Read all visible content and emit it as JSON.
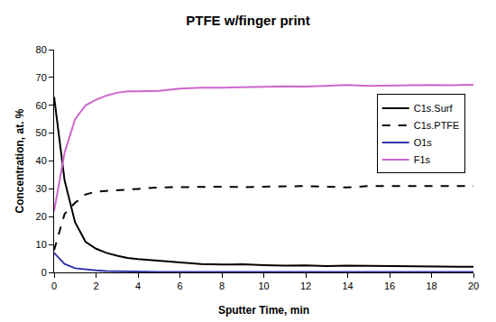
{
  "chart_data": {
    "type": "line",
    "title": "PTFE w/finger print",
    "x_label": "Sputter Time, min",
    "y_label": "Concentration, at. %",
    "x": [
      0,
      0.5,
      1,
      1.5,
      2,
      2.5,
      3,
      3.5,
      4,
      5,
      6,
      7,
      8,
      9,
      10,
      11,
      12,
      13,
      14,
      15,
      16,
      17,
      18,
      19,
      20
    ],
    "series": [
      {
        "name": "C1s.Surf",
        "color": "#000000",
        "line_style": "solid",
        "values": [
          63,
          33,
          18,
          11,
          8.5,
          7,
          6,
          5.2,
          4.8,
          4.2,
          3.5,
          3,
          2.8,
          2.9,
          2.6,
          2.4,
          2.5,
          2.3,
          2.4,
          2.3,
          2.2,
          2.1,
          2.1,
          2,
          2
        ]
      },
      {
        "name": "C1s.PTFE",
        "color": "#000000",
        "line_style": "dash",
        "values": [
          8,
          21,
          25,
          28,
          29,
          29.3,
          29.6,
          29.8,
          30,
          30.5,
          30.5,
          30.7,
          30.8,
          30.6,
          30.8,
          31,
          31,
          30.8,
          30.5,
          31,
          31,
          31,
          31,
          31,
          31
        ]
      },
      {
        "name": "O1s",
        "color": "#3333aa",
        "line_style": "solid",
        "values": [
          7,
          3,
          1.5,
          1,
          0.7,
          0.5,
          0.4,
          0.3,
          0.3,
          0.2,
          0.2,
          0.2,
          0.2,
          0.2,
          0.2,
          0.2,
          0.2,
          0.2,
          0.2,
          0.2,
          0.2,
          0.2,
          0.2,
          0.2,
          0.2
        ]
      },
      {
        "name": "F1s",
        "color": "#cc66cc",
        "line_style": "solid",
        "values": [
          22,
          43,
          55,
          60,
          62,
          63.5,
          64.5,
          65,
          65,
          65.2,
          66,
          66.3,
          66.3,
          66.5,
          66.8,
          66.8,
          66.7,
          67,
          67.3,
          67,
          67,
          67.2,
          67.3,
          67.2,
          67.4
        ]
      }
    ],
    "xlim": [
      0,
      20
    ],
    "xticks": [
      0,
      2,
      4,
      6,
      8,
      10,
      12,
      14,
      16,
      18,
      20
    ],
    "ylim": [
      0,
      80
    ],
    "yticks": [
      0,
      10,
      20,
      30,
      40,
      50,
      60,
      70,
      80
    ],
    "grid": false,
    "legend": "right"
  }
}
